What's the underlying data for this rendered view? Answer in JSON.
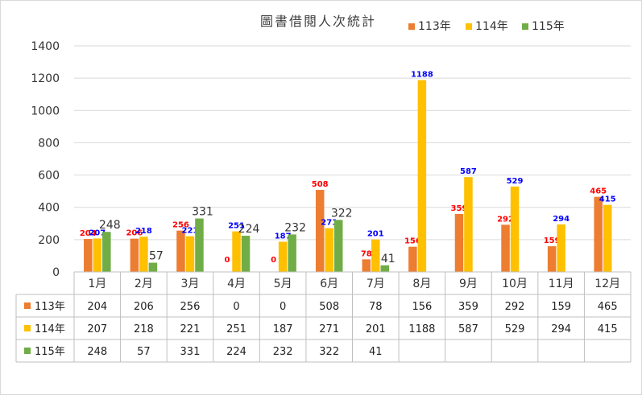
{
  "chart_data": {
    "type": "bar",
    "title": "圖書借閱人次統計",
    "categories": [
      "1月",
      "2月",
      "3月",
      "4月",
      "5月",
      "6月",
      "7月",
      "8月",
      "9月",
      "10月",
      "11月",
      "12月"
    ],
    "ylim": [
      0,
      1400
    ],
    "yticks": [
      0,
      200,
      400,
      600,
      800,
      1000,
      1200,
      1400
    ],
    "grid": true,
    "legend": "top-right",
    "data_table": true,
    "series": [
      {
        "name": "113年",
        "color": "#ED7D31",
        "label_color": "#FF0000",
        "values": [
          204,
          206,
          256,
          0,
          0,
          508,
          78,
          156,
          359,
          292,
          159,
          465
        ]
      },
      {
        "name": "114年",
        "color": "#FFC000",
        "label_color": "#0000FF",
        "values": [
          207,
          218,
          221,
          251,
          187,
          271,
          201,
          1188,
          587,
          529,
          294,
          415
        ]
      },
      {
        "name": "115年",
        "color": "#70AD47",
        "label_color": "#333333",
        "values": [
          248,
          57,
          331,
          224,
          232,
          322,
          41,
          null,
          null,
          null,
          null,
          null
        ]
      }
    ]
  }
}
